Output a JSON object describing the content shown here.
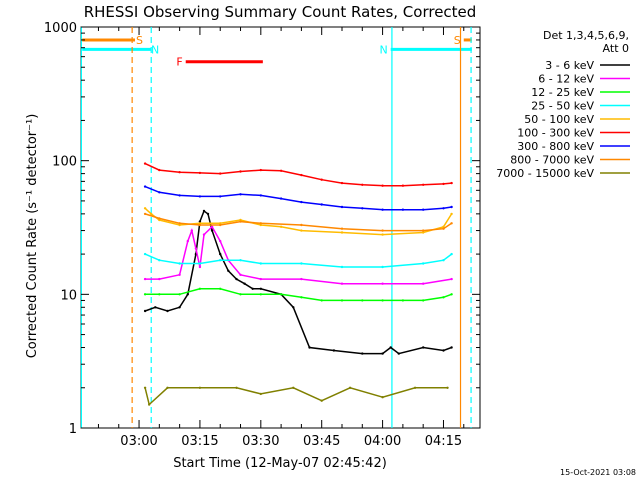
{
  "chart_data": {
    "type": "line",
    "title": "RHESSI Observing Summary Count Rates, Corrected",
    "xlabel": "Start Time (12-May-07 02:45:42)",
    "ylabel": "Corrected Count Rate (s⁻¹ detector⁻¹)",
    "yscale": "log",
    "ylim": [
      1,
      1000
    ],
    "xlim_minutes": [
      -14.3,
      84.0
    ],
    "xticks": [
      "03:00",
      "03:15",
      "03:30",
      "03:45",
      "04:00",
      "04:15"
    ],
    "xtick_minutes": [
      0,
      15,
      30,
      45,
      60,
      75
    ],
    "yticks": [
      "1",
      "10",
      "100",
      "1000"
    ],
    "ytick_values": [
      1,
      10,
      100,
      1000
    ],
    "legend": {
      "header": [
        "Det 1,3,4,5,6,9,",
        "Att 0"
      ],
      "placement": "right"
    },
    "series": [
      {
        "name": "3 - 6 keV",
        "color": "#000000",
        "x": [
          1.5,
          4,
          7,
          10,
          12,
          14,
          15,
          16,
          17,
          18,
          20,
          22,
          24,
          26,
          28,
          30,
          35,
          38,
          42,
          48,
          55,
          60,
          62,
          64,
          70,
          75,
          77
        ],
        "y": [
          7.5,
          8,
          7.5,
          8,
          10,
          20,
          35,
          42,
          40,
          30,
          20,
          15,
          13,
          12,
          11,
          11,
          10,
          8,
          4,
          3.8,
          3.6,
          3.6,
          4,
          3.6,
          4,
          3.8,
          4
        ]
      },
      {
        "name": "6 - 12 keV",
        "color": "#ff00ff",
        "x": [
          1.5,
          5,
          10,
          12,
          13,
          14,
          15,
          16,
          18,
          20,
          22,
          25,
          30,
          40,
          50,
          60,
          70,
          77
        ],
        "y": [
          13,
          13,
          14,
          25,
          30,
          22,
          16,
          28,
          32,
          25,
          18,
          14,
          13,
          13,
          12,
          12,
          12,
          13
        ]
      },
      {
        "name": "12 - 25 keV",
        "color": "#00ff00",
        "x": [
          1.5,
          5,
          10,
          15,
          20,
          25,
          30,
          35,
          40,
          45,
          50,
          55,
          60,
          65,
          70,
          75,
          77
        ],
        "y": [
          10,
          10,
          10,
          11,
          11,
          10,
          10,
          10,
          9.5,
          9,
          9,
          9,
          9,
          9,
          9,
          9.5,
          10
        ]
      },
      {
        "name": "25 - 50 keV",
        "color": "#00ffff",
        "x": [
          1.5,
          5,
          10,
          15,
          20,
          25,
          30,
          40,
          50,
          60,
          70,
          75,
          77
        ],
        "y": [
          20,
          18,
          17,
          17,
          18,
          18,
          17,
          17,
          16,
          16,
          17,
          18,
          20
        ]
      },
      {
        "name": "50 - 100 keV",
        "color": "#ffbb00",
        "x": [
          1.5,
          3,
          5,
          10,
          15,
          20,
          25,
          30,
          35,
          40,
          50,
          60,
          70,
          75,
          77
        ],
        "y": [
          44,
          40,
          36,
          33,
          34,
          34,
          36,
          33,
          32,
          30,
          29,
          28,
          29,
          32,
          40
        ]
      },
      {
        "name": "100 - 300 keV",
        "color": "#ff0000",
        "x": [
          1.5,
          5,
          10,
          15,
          20,
          25,
          30,
          35,
          40,
          45,
          50,
          55,
          60,
          65,
          70,
          75,
          77
        ],
        "y": [
          95,
          85,
          82,
          81,
          80,
          83,
          85,
          84,
          78,
          72,
          68,
          66,
          65,
          65,
          66,
          67,
          68
        ]
      },
      {
        "name": "300 - 800 keV",
        "color": "#0000ff",
        "x": [
          1.5,
          5,
          10,
          15,
          20,
          25,
          30,
          35,
          40,
          45,
          50,
          55,
          60,
          65,
          70,
          75,
          77
        ],
        "y": [
          64,
          58,
          55,
          54,
          54,
          56,
          55,
          52,
          49,
          47,
          45,
          44,
          43,
          43,
          43,
          44,
          45
        ]
      },
      {
        "name": "800 - 7000 keV",
        "color": "#ff8800",
        "x": [
          1.5,
          5,
          10,
          15,
          20,
          25,
          30,
          40,
          50,
          60,
          70,
          75,
          77
        ],
        "y": [
          40,
          37,
          34,
          33,
          33,
          35,
          34,
          33,
          31,
          30,
          30,
          31,
          34
        ]
      },
      {
        "name": "7000 - 15000 keV",
        "color": "#808000",
        "x": [
          1.5,
          2.5,
          7,
          15,
          24,
          30,
          38,
          45,
          52,
          60,
          68,
          76
        ],
        "y": [
          2,
          1.5,
          2,
          2,
          2,
          1.8,
          2,
          1.6,
          2,
          1.7,
          2,
          2
        ]
      }
    ],
    "flag_bars": [
      {
        "label": "S",
        "color": "#ff8800",
        "x": [
          -14,
          -1
        ],
        "y": 800
      },
      {
        "label": "S",
        "color": "#ff8800",
        "x": [
          80,
          82
        ],
        "y": 800
      },
      {
        "label": "N",
        "color": "#00ffff",
        "x": [
          -14,
          3
        ],
        "y": 680
      },
      {
        "label": "N",
        "color": "#00ffff",
        "x": [
          62,
          82
        ],
        "y": 680
      },
      {
        "label": "F",
        "color": "#ff0000",
        "x": [
          11.5,
          30.5
        ],
        "y": 550
      }
    ],
    "vlines": [
      {
        "x": -14.2,
        "color": "#00ffff",
        "style": "solid"
      },
      {
        "x": -1.7,
        "color": "#ff8800",
        "style": "dash"
      },
      {
        "x": 3.0,
        "color": "#00ffff",
        "style": "dash"
      },
      {
        "x": 62.3,
        "color": "#00ffff",
        "style": "solid"
      },
      {
        "x": 79.2,
        "color": "#ff8800",
        "style": "solid"
      },
      {
        "x": 81.8,
        "color": "#00ffff",
        "style": "dash"
      }
    ]
  },
  "footer": {
    "timestamp": "15-Oct-2021 03:08"
  }
}
